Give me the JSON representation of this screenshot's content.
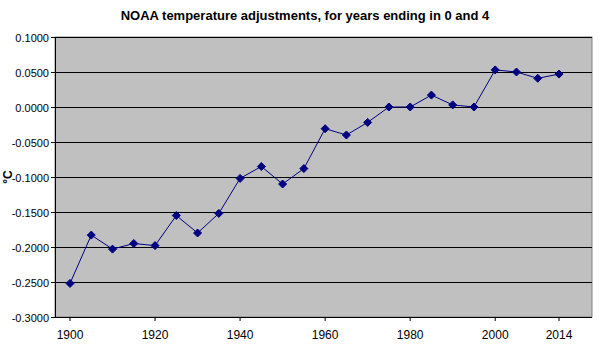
{
  "chart_data": {
    "type": "line",
    "title": "NOAA temperature adjustments, for years ending in 0 and 4",
    "y_label": "°C",
    "categories": [
      "1900",
      null,
      null,
      null,
      "1920",
      null,
      null,
      null,
      "1940",
      null,
      null,
      null,
      "1960",
      null,
      null,
      null,
      "1980",
      null,
      null,
      null,
      "2000",
      null,
      null,
      "2014"
    ],
    "values": [
      -0.252,
      -0.183,
      -0.203,
      -0.195,
      -0.198,
      -0.155,
      -0.18,
      -0.152,
      -0.102,
      -0.085,
      -0.11,
      -0.088,
      -0.031,
      -0.04,
      -0.022,
      0.0,
      0.0,
      0.017,
      0.003,
      0.0,
      0.053,
      0.05,
      0.041,
      0.047
    ],
    "color": "#000080",
    "marker": "diamond",
    "ylim": [
      -0.3,
      0.1
    ],
    "yticks": [
      {
        "value": 0.1,
        "label": "0.1000"
      },
      {
        "value": 0.05,
        "label": "0.0500"
      },
      {
        "value": 0,
        "label": "0.0000"
      },
      {
        "value": -0.05,
        "label": "-0.0500"
      },
      {
        "value": -0.1,
        "label": "-0.1000"
      },
      {
        "value": -0.15,
        "label": "-0.1500"
      },
      {
        "value": -0.2,
        "label": "-0.2000"
      },
      {
        "value": -0.25,
        "label": "-0.2500"
      },
      {
        "value": -0.3,
        "label": "-0.3000"
      }
    ],
    "grid": true
  }
}
